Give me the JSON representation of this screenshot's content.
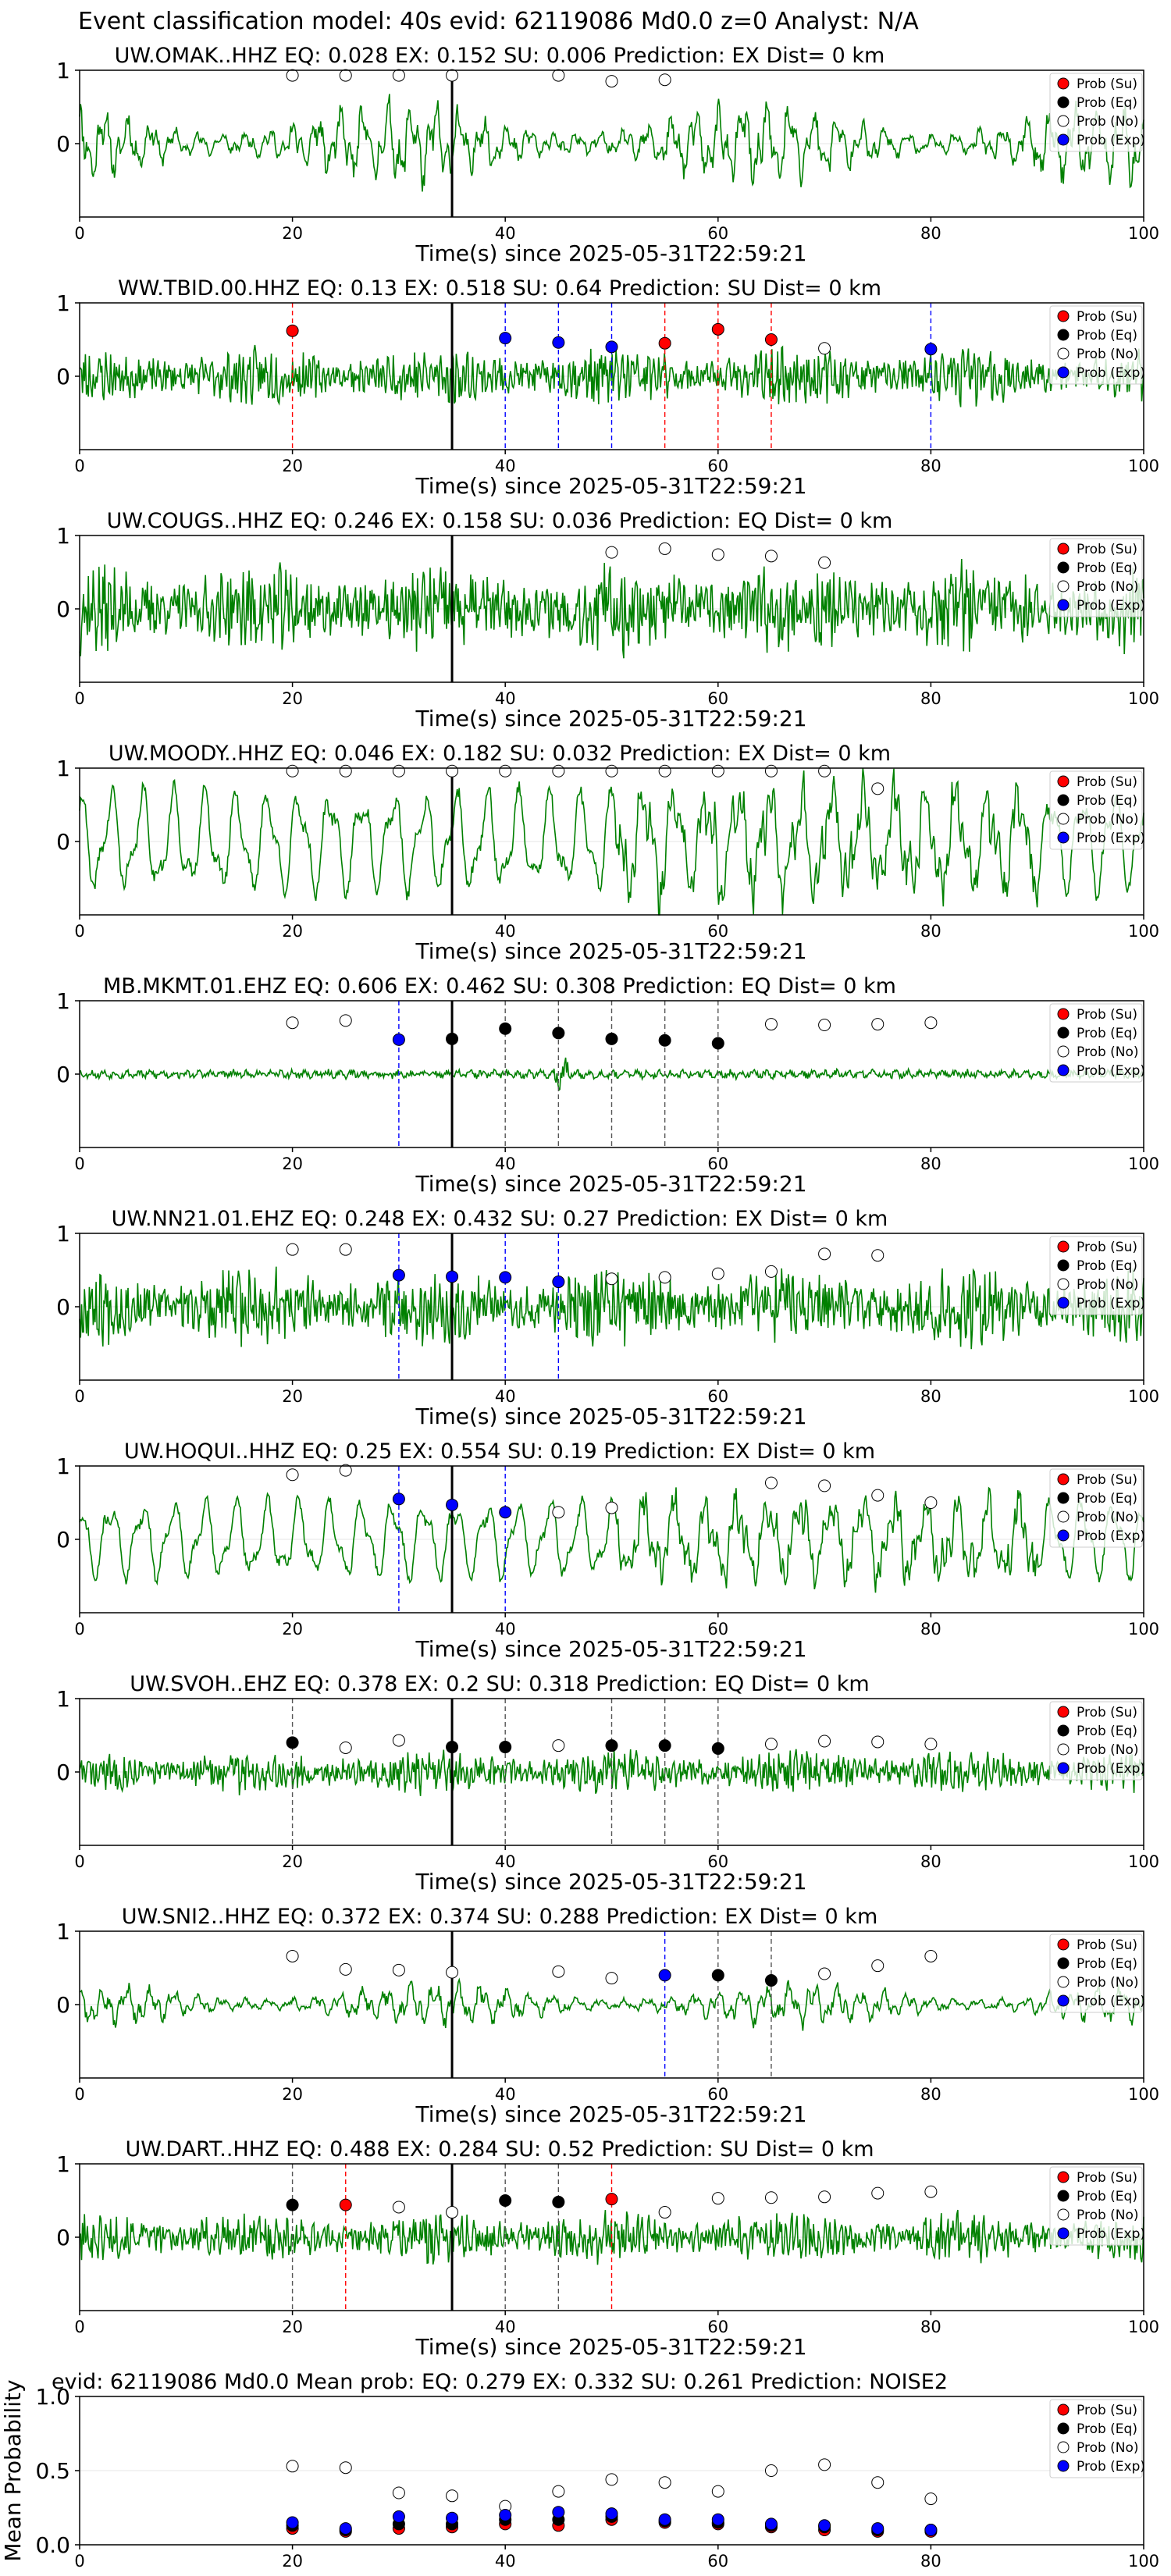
{
  "figure": {
    "suptitle": "Event classification model: 40s evid: 62119086 Md0.0 z=0 Analyst: N/A"
  },
  "legend_labels": [
    "Prob (Su)",
    "Prob (Eq)",
    "Prob (No)",
    "Prob (Exp)"
  ],
  "colors": {
    "trace": "#008000",
    "su": "#ff0000",
    "eq": "#000000",
    "no": "#ffffff",
    "exp": "#0000ff",
    "event_line": "#000000"
  },
  "chart_data": [
    {
      "type": "line",
      "title": "UW.OMAK..HHZ   EQ: 0.028   EX: 0.152   SU: 0.006   Prediction: EX    Dist= 0 km",
      "xlabel": "Time(s) since 2025-05-31T22:59:21",
      "xlim": [
        0,
        100
      ],
      "ylim": [
        -1,
        1
      ],
      "xticks": [
        0,
        20,
        40,
        60,
        80,
        100
      ],
      "yticks": [
        1,
        0
      ],
      "waveform": {
        "style": "mixed",
        "amp": 0.38,
        "seed": 11
      },
      "event_line_x": 35,
      "points": [
        {
          "x": 20,
          "y": 0.93,
          "cls": "no"
        },
        {
          "x": 25,
          "y": 0.93,
          "cls": "no"
        },
        {
          "x": 30,
          "y": 0.93,
          "cls": "no"
        },
        {
          "x": 35,
          "y": 0.93,
          "cls": "no"
        },
        {
          "x": 45,
          "y": 0.93,
          "cls": "no"
        },
        {
          "x": 50,
          "y": 0.85,
          "cls": "no"
        },
        {
          "x": 55,
          "y": 0.87,
          "cls": "no"
        }
      ]
    },
    {
      "type": "line",
      "title": "WW.TBID.00.HHZ   EQ: 0.13   EX: 0.518   SU: 0.64   Prediction: SU    Dist= 0 km",
      "xlabel": "Time(s) since 2025-05-31T22:59:21",
      "xlim": [
        0,
        100
      ],
      "ylim": [
        -1,
        1
      ],
      "xticks": [
        0,
        20,
        40,
        60,
        80,
        100
      ],
      "yticks": [
        1,
        0
      ],
      "waveform": {
        "style": "noisy",
        "amp": 0.22,
        "seed": 23
      },
      "event_line_x": 35,
      "points": [
        {
          "x": 20,
          "y": 0.62,
          "cls": "su"
        },
        {
          "x": 40,
          "y": 0.52,
          "cls": "exp"
        },
        {
          "x": 45,
          "y": 0.46,
          "cls": "exp"
        },
        {
          "x": 50,
          "y": 0.4,
          "cls": "exp"
        },
        {
          "x": 55,
          "y": 0.45,
          "cls": "su"
        },
        {
          "x": 60,
          "y": 0.64,
          "cls": "su"
        },
        {
          "x": 65,
          "y": 0.5,
          "cls": "su"
        },
        {
          "x": 70,
          "y": 0.38,
          "cls": "no"
        },
        {
          "x": 80,
          "y": 0.37,
          "cls": "exp"
        }
      ]
    },
    {
      "type": "line",
      "title": "UW.COUGS..HHZ   EQ: 0.246   EX: 0.158   SU: 0.036   Prediction: EQ    Dist= 0 km",
      "xlabel": "Time(s) since 2025-05-31T22:59:21",
      "xlim": [
        0,
        100
      ],
      "ylim": [
        -1,
        1
      ],
      "xticks": [
        0,
        20,
        40,
        60,
        80,
        100
      ],
      "yticks": [
        1,
        0
      ],
      "waveform": {
        "style": "noisy",
        "amp": 0.35,
        "seed": 37
      },
      "event_line_x": 35,
      "points": [
        {
          "x": 50,
          "y": 0.77,
          "cls": "no"
        },
        {
          "x": 55,
          "y": 0.82,
          "cls": "no"
        },
        {
          "x": 60,
          "y": 0.74,
          "cls": "no"
        },
        {
          "x": 65,
          "y": 0.72,
          "cls": "no"
        },
        {
          "x": 70,
          "y": 0.63,
          "cls": "no"
        }
      ]
    },
    {
      "type": "line",
      "title": "UW.MOODY..HHZ   EQ: 0.046   EX: 0.182   SU: 0.032   Prediction: EX    Dist= 0 km",
      "xlabel": "Time(s) since 2025-05-31T22:59:21",
      "xlim": [
        0,
        100
      ],
      "ylim": [
        -1,
        1
      ],
      "xticks": [
        0,
        20,
        40,
        60,
        80,
        100
      ],
      "yticks": [
        1,
        0
      ],
      "waveform": {
        "style": "smooth",
        "amp": 0.72,
        "seed": 41
      },
      "event_line_x": 35,
      "points": [
        {
          "x": 20,
          "y": 0.96,
          "cls": "no"
        },
        {
          "x": 25,
          "y": 0.96,
          "cls": "no"
        },
        {
          "x": 30,
          "y": 0.96,
          "cls": "no"
        },
        {
          "x": 35,
          "y": 0.96,
          "cls": "no"
        },
        {
          "x": 40,
          "y": 0.96,
          "cls": "no"
        },
        {
          "x": 45,
          "y": 0.96,
          "cls": "no"
        },
        {
          "x": 50,
          "y": 0.96,
          "cls": "no"
        },
        {
          "x": 55,
          "y": 0.96,
          "cls": "no"
        },
        {
          "x": 60,
          "y": 0.96,
          "cls": "no"
        },
        {
          "x": 65,
          "y": 0.96,
          "cls": "no"
        },
        {
          "x": 70,
          "y": 0.96,
          "cls": "no"
        },
        {
          "x": 75,
          "y": 0.72,
          "cls": "no"
        }
      ]
    },
    {
      "type": "line",
      "title": "MB.MKMT.01.EHZ   EQ: 0.606   EX: 0.462   SU: 0.308   Prediction: EQ    Dist= 0 km",
      "xlabel": "Time(s) since 2025-05-31T22:59:21",
      "xlim": [
        0,
        100
      ],
      "ylim": [
        -1,
        1
      ],
      "xticks": [
        0,
        20,
        40,
        60,
        80,
        100
      ],
      "yticks": [
        1,
        0
      ],
      "waveform": {
        "style": "low",
        "amp": 0.07,
        "seed": 53
      },
      "event_line_x": 35,
      "points": [
        {
          "x": 20,
          "y": 0.7,
          "cls": "no"
        },
        {
          "x": 25,
          "y": 0.73,
          "cls": "no"
        },
        {
          "x": 30,
          "y": 0.47,
          "cls": "exp"
        },
        {
          "x": 35,
          "y": 0.48,
          "cls": "eq"
        },
        {
          "x": 40,
          "y": 0.62,
          "cls": "eq"
        },
        {
          "x": 45,
          "y": 0.56,
          "cls": "eq"
        },
        {
          "x": 50,
          "y": 0.48,
          "cls": "eq"
        },
        {
          "x": 55,
          "y": 0.46,
          "cls": "eq"
        },
        {
          "x": 60,
          "y": 0.42,
          "cls": "eq"
        },
        {
          "x": 65,
          "y": 0.68,
          "cls": "no"
        },
        {
          "x": 70,
          "y": 0.67,
          "cls": "no"
        },
        {
          "x": 75,
          "y": 0.68,
          "cls": "no"
        },
        {
          "x": 80,
          "y": 0.7,
          "cls": "no"
        }
      ]
    },
    {
      "type": "line",
      "title": "UW.NN21.01.EHZ   EQ: 0.248   EX: 0.432   SU: 0.27   Prediction: EX    Dist= 0 km",
      "xlabel": "Time(s) since 2025-05-31T22:59:21",
      "xlim": [
        0,
        100
      ],
      "ylim": [
        -1,
        1
      ],
      "xticks": [
        0,
        20,
        40,
        60,
        80,
        100
      ],
      "yticks": [
        1,
        0
      ],
      "waveform": {
        "style": "noisy",
        "amp": 0.3,
        "seed": 67
      },
      "event_line_x": 35,
      "points": [
        {
          "x": 20,
          "y": 0.78,
          "cls": "no"
        },
        {
          "x": 25,
          "y": 0.78,
          "cls": "no"
        },
        {
          "x": 30,
          "y": 0.43,
          "cls": "exp"
        },
        {
          "x": 35,
          "y": 0.41,
          "cls": "exp"
        },
        {
          "x": 40,
          "y": 0.4,
          "cls": "exp"
        },
        {
          "x": 45,
          "y": 0.34,
          "cls": "exp"
        },
        {
          "x": 50,
          "y": 0.38,
          "cls": "no"
        },
        {
          "x": 55,
          "y": 0.4,
          "cls": "no"
        },
        {
          "x": 60,
          "y": 0.45,
          "cls": "no"
        },
        {
          "x": 65,
          "y": 0.48,
          "cls": "no"
        },
        {
          "x": 70,
          "y": 0.72,
          "cls": "no"
        },
        {
          "x": 75,
          "y": 0.7,
          "cls": "no"
        }
      ]
    },
    {
      "type": "line",
      "title": "UW.HOQUI..HHZ   EQ: 0.25   EX: 0.554   SU: 0.19   Prediction: EX    Dist= 0 km",
      "xlabel": "Time(s) since 2025-05-31T22:59:21",
      "xlim": [
        0,
        100
      ],
      "ylim": [
        -1,
        1
      ],
      "xticks": [
        0,
        20,
        40,
        60,
        80,
        100
      ],
      "yticks": [
        1,
        0
      ],
      "waveform": {
        "style": "smooth",
        "amp": 0.55,
        "seed": 71
      },
      "event_line_x": 35,
      "points": [
        {
          "x": 20,
          "y": 0.88,
          "cls": "no"
        },
        {
          "x": 25,
          "y": 0.94,
          "cls": "no"
        },
        {
          "x": 30,
          "y": 0.55,
          "cls": "exp"
        },
        {
          "x": 35,
          "y": 0.47,
          "cls": "exp"
        },
        {
          "x": 40,
          "y": 0.37,
          "cls": "exp"
        },
        {
          "x": 45,
          "y": 0.37,
          "cls": "no"
        },
        {
          "x": 50,
          "y": 0.43,
          "cls": "no"
        },
        {
          "x": 65,
          "y": 0.77,
          "cls": "no"
        },
        {
          "x": 70,
          "y": 0.73,
          "cls": "no"
        },
        {
          "x": 75,
          "y": 0.6,
          "cls": "no"
        },
        {
          "x": 80,
          "y": 0.5,
          "cls": "no"
        }
      ]
    },
    {
      "type": "line",
      "title": "UW.SVOH..EHZ   EQ: 0.378   EX: 0.2   SU: 0.318   Prediction: EQ    Dist= 0 km",
      "xlabel": "Time(s) since 2025-05-31T22:59:21",
      "xlim": [
        0,
        100
      ],
      "ylim": [
        -1,
        1
      ],
      "xticks": [
        0,
        20,
        40,
        60,
        80,
        100
      ],
      "yticks": [
        1,
        0
      ],
      "waveform": {
        "style": "noisy",
        "amp": 0.17,
        "seed": 83
      },
      "event_line_x": 35,
      "points": [
        {
          "x": 20,
          "y": 0.4,
          "cls": "eq"
        },
        {
          "x": 25,
          "y": 0.33,
          "cls": "no"
        },
        {
          "x": 30,
          "y": 0.43,
          "cls": "no"
        },
        {
          "x": 35,
          "y": 0.34,
          "cls": "eq"
        },
        {
          "x": 40,
          "y": 0.34,
          "cls": "eq"
        },
        {
          "x": 45,
          "y": 0.36,
          "cls": "no"
        },
        {
          "x": 50,
          "y": 0.36,
          "cls": "eq"
        },
        {
          "x": 55,
          "y": 0.36,
          "cls": "eq"
        },
        {
          "x": 60,
          "y": 0.32,
          "cls": "eq"
        },
        {
          "x": 65,
          "y": 0.38,
          "cls": "no"
        },
        {
          "x": 70,
          "y": 0.42,
          "cls": "no"
        },
        {
          "x": 75,
          "y": 0.41,
          "cls": "no"
        },
        {
          "x": 80,
          "y": 0.38,
          "cls": "no"
        }
      ]
    },
    {
      "type": "line",
      "title": "UW.SNI2..HHZ   EQ: 0.372   EX: 0.374   SU: 0.288   Prediction: EX    Dist= 0 km",
      "xlabel": "Time(s) since 2025-05-31T22:59:21",
      "xlim": [
        0,
        100
      ],
      "ylim": [
        -1,
        1
      ],
      "xticks": [
        0,
        20,
        40,
        60,
        80,
        100
      ],
      "yticks": [
        1,
        0
      ],
      "waveform": {
        "style": "mixed",
        "amp": 0.2,
        "seed": 97
      },
      "event_line_x": 35,
      "points": [
        {
          "x": 20,
          "y": 0.66,
          "cls": "no"
        },
        {
          "x": 25,
          "y": 0.48,
          "cls": "no"
        },
        {
          "x": 30,
          "y": 0.47,
          "cls": "no"
        },
        {
          "x": 35,
          "y": 0.44,
          "cls": "no"
        },
        {
          "x": 45,
          "y": 0.45,
          "cls": "no"
        },
        {
          "x": 50,
          "y": 0.36,
          "cls": "no"
        },
        {
          "x": 55,
          "y": 0.4,
          "cls": "exp"
        },
        {
          "x": 60,
          "y": 0.4,
          "cls": "eq"
        },
        {
          "x": 65,
          "y": 0.33,
          "cls": "eq"
        },
        {
          "x": 70,
          "y": 0.42,
          "cls": "no"
        },
        {
          "x": 75,
          "y": 0.53,
          "cls": "no"
        },
        {
          "x": 80,
          "y": 0.66,
          "cls": "no"
        }
      ]
    },
    {
      "type": "line",
      "title": "UW.DART..HHZ   EQ: 0.488   EX: 0.284   SU: 0.52   Prediction: SU    Dist= 0 km",
      "xlabel": "Time(s) since 2025-05-31T22:59:21",
      "xlim": [
        0,
        100
      ],
      "ylim": [
        -1,
        1
      ],
      "xticks": [
        0,
        20,
        40,
        60,
        80,
        100
      ],
      "yticks": [
        1,
        0
      ],
      "waveform": {
        "style": "noisy",
        "amp": 0.2,
        "seed": 101
      },
      "event_line_x": 35,
      "points": [
        {
          "x": 20,
          "y": 0.44,
          "cls": "eq"
        },
        {
          "x": 25,
          "y": 0.44,
          "cls": "su"
        },
        {
          "x": 30,
          "y": 0.41,
          "cls": "no"
        },
        {
          "x": 35,
          "y": 0.34,
          "cls": "no"
        },
        {
          "x": 40,
          "y": 0.5,
          "cls": "eq"
        },
        {
          "x": 45,
          "y": 0.48,
          "cls": "eq"
        },
        {
          "x": 50,
          "y": 0.52,
          "cls": "su"
        },
        {
          "x": 55,
          "y": 0.34,
          "cls": "no"
        },
        {
          "x": 60,
          "y": 0.53,
          "cls": "no"
        },
        {
          "x": 65,
          "y": 0.54,
          "cls": "no"
        },
        {
          "x": 70,
          "y": 0.55,
          "cls": "no"
        },
        {
          "x": 75,
          "y": 0.6,
          "cls": "no"
        },
        {
          "x": 80,
          "y": 0.62,
          "cls": "no"
        }
      ]
    },
    {
      "type": "scatter",
      "title": "evid: 62119086  Md0.0   Mean prob:   EQ: 0.279  EX: 0.332  SU: 0.261   Prediction: NOISE2",
      "ylabel": "Mean Probability",
      "xlim": [
        0,
        100
      ],
      "ylim": [
        0,
        1
      ],
      "xticks": [
        0,
        20,
        40,
        60,
        80,
        100
      ],
      "yticks": [
        0.0,
        0.5,
        1.0
      ],
      "ytick_labels": [
        "0.0",
        "0.5",
        "1.0"
      ],
      "series": [
        {
          "name": "Prob (No)",
          "cls": "no",
          "x": [
            20,
            25,
            30,
            35,
            40,
            45,
            50,
            55,
            60,
            65,
            70,
            75,
            80
          ],
          "y": [
            0.53,
            0.52,
            0.35,
            0.33,
            0.26,
            0.36,
            0.44,
            0.42,
            0.36,
            0.5,
            0.54,
            0.42,
            0.31
          ]
        },
        {
          "name": "Prob (Su)",
          "cls": "su",
          "x": [
            20,
            25,
            30,
            35,
            40,
            45,
            50,
            55,
            60,
            65,
            70,
            75,
            80
          ],
          "y": [
            0.11,
            0.09,
            0.11,
            0.12,
            0.14,
            0.13,
            0.17,
            0.15,
            0.14,
            0.12,
            0.1,
            0.09,
            0.09
          ]
        },
        {
          "name": "Prob (Eq)",
          "cls": "eq",
          "x": [
            20,
            25,
            30,
            35,
            40,
            45,
            50,
            55,
            60,
            65,
            70,
            75,
            80
          ],
          "y": [
            0.13,
            0.1,
            0.14,
            0.14,
            0.17,
            0.17,
            0.19,
            0.16,
            0.15,
            0.13,
            0.12,
            0.1,
            0.1
          ]
        },
        {
          "name": "Prob (Exp)",
          "cls": "exp",
          "x": [
            20,
            25,
            30,
            35,
            40,
            45,
            50,
            55,
            60,
            65,
            70,
            75,
            80
          ],
          "y": [
            0.15,
            0.11,
            0.19,
            0.18,
            0.2,
            0.22,
            0.21,
            0.17,
            0.17,
            0.14,
            0.13,
            0.11,
            0.1
          ]
        }
      ]
    }
  ]
}
